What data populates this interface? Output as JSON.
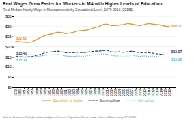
{
  "chart_data": {
    "type": "line",
    "title": "Real Wages Grew Faster for Workers in MA with Higher Levels of Education",
    "subtitle": "Real Median Hourly Wage in Massachusetts by Educational Level, 1979-2016 (2016$)",
    "annotations": [
      "Source: Economic Policy Institute analysis of Current Population Survey data, values deflated using CPI-U-RS."
    ],
    "x": [
      1979,
      1980,
      1981,
      1982,
      1983,
      1984,
      1985,
      1986,
      1987,
      1988,
      1989,
      1990,
      1991,
      1992,
      1993,
      1994,
      1995,
      1996,
      1997,
      1998,
      1999,
      2000,
      2001,
      2002,
      2003,
      2004,
      2005,
      2006,
      2007,
      2008,
      2009,
      2010,
      2011,
      2012,
      2013,
      2014,
      2015,
      2016
    ],
    "series": [
      {
        "name": "Bachelor's or higher",
        "color": "#F0922B",
        "line_style": "solid",
        "values": [
          22.61,
          22.5,
          22.3,
          22.2,
          22.5,
          23.5,
          24.5,
          25.5,
          26.0,
          26.5,
          27.2,
          27.0,
          26.5,
          26.8,
          27.2,
          27.8,
          28.0,
          28.2,
          28.8,
          29.5,
          30.0,
          31.0,
          31.2,
          30.5,
          30.5,
          30.8,
          31.0,
          31.5,
          31.2,
          30.8,
          30.5,
          31.0,
          31.5,
          31.2,
          31.0,
          30.8,
          30.2,
          30.11
        ],
        "value_labels": [
          "$22.61",
          null,
          null,
          null,
          null,
          null,
          null,
          null,
          null,
          null,
          null,
          null,
          null,
          null,
          null,
          null,
          null,
          null,
          null,
          null,
          null,
          null,
          null,
          null,
          null,
          null,
          null,
          null,
          null,
          null,
          null,
          null,
          null,
          null,
          null,
          null,
          null,
          "$30.11"
        ]
      },
      {
        "name": "Some college",
        "color": "#1A3A5C",
        "line_style": "dashed",
        "values": [
          15.41,
          15.2,
          15.0,
          15.1,
          15.3,
          15.8,
          16.2,
          17.0,
          17.3,
          17.5,
          17.8,
          17.5,
          17.0,
          17.2,
          17.0,
          17.3,
          17.1,
          17.2,
          17.5,
          17.8,
          17.8,
          18.0,
          18.2,
          17.5,
          17.3,
          17.5,
          17.2,
          17.5,
          17.8,
          17.3,
          17.0,
          17.2,
          17.0,
          16.8,
          16.5,
          16.3,
          16.0,
          15.97
        ],
        "value_labels": [
          "$15.41",
          null,
          null,
          null,
          null,
          null,
          null,
          null,
          null,
          null,
          null,
          null,
          null,
          null,
          null,
          null,
          null,
          null,
          null,
          null,
          null,
          null,
          null,
          null,
          null,
          null,
          null,
          null,
          null,
          null,
          null,
          null,
          null,
          null,
          null,
          null,
          null,
          "$15.97"
        ]
      },
      {
        "name": "High school",
        "color": "#4ABFDF",
        "line_style": "dotted",
        "values": [
          15.19,
          15.0,
          14.8,
          14.9,
          15.0,
          15.2,
          15.5,
          15.8,
          16.0,
          16.2,
          16.3,
          16.0,
          15.5,
          15.3,
          15.2,
          15.5,
          15.3,
          15.5,
          15.8,
          16.0,
          16.2,
          16.5,
          16.3,
          15.8,
          15.5,
          15.5,
          15.3,
          15.5,
          15.8,
          15.5,
          15.3,
          15.5,
          15.3,
          15.5,
          15.2,
          15.0,
          14.8,
          15.12
        ],
        "value_labels": [
          "$15.19",
          null,
          null,
          null,
          null,
          null,
          null,
          null,
          null,
          null,
          null,
          null,
          null,
          null,
          null,
          null,
          null,
          null,
          null,
          null,
          null,
          null,
          null,
          null,
          null,
          null,
          null,
          null,
          null,
          null,
          null,
          null,
          null,
          null,
          null,
          null,
          null,
          "$15.12"
        ]
      }
    ],
    "xlim": [
      1978.5,
      2017.5
    ],
    "xticks": [
      1979,
      1980,
      1981,
      1982,
      1983,
      1984,
      1985,
      1986,
      1987,
      1988,
      1989,
      1990,
      1991,
      1992,
      1993,
      1994,
      1995,
      1996,
      1997,
      1998,
      1999,
      2000,
      2001,
      2002,
      2003,
      2004,
      2005,
      2006,
      2007,
      2008,
      2009,
      2010,
      2011,
      2012,
      2013,
      2014,
      2015,
      2016
    ],
    "ylim": [
      0,
      35
    ],
    "yticks": [
      {
        "value": 0,
        "label": "$0"
      },
      {
        "value": 5,
        "label": "$5"
      },
      {
        "value": 10,
        "label": "$10"
      },
      {
        "value": 15,
        "label": "$15"
      },
      {
        "value": 20,
        "label": "$20"
      },
      {
        "value": 25,
        "label": "$25"
      },
      {
        "value": 30,
        "label": "$30"
      },
      {
        "value": 35,
        "label": "$35"
      }
    ],
    "grid": true,
    "legend": "bottom"
  }
}
